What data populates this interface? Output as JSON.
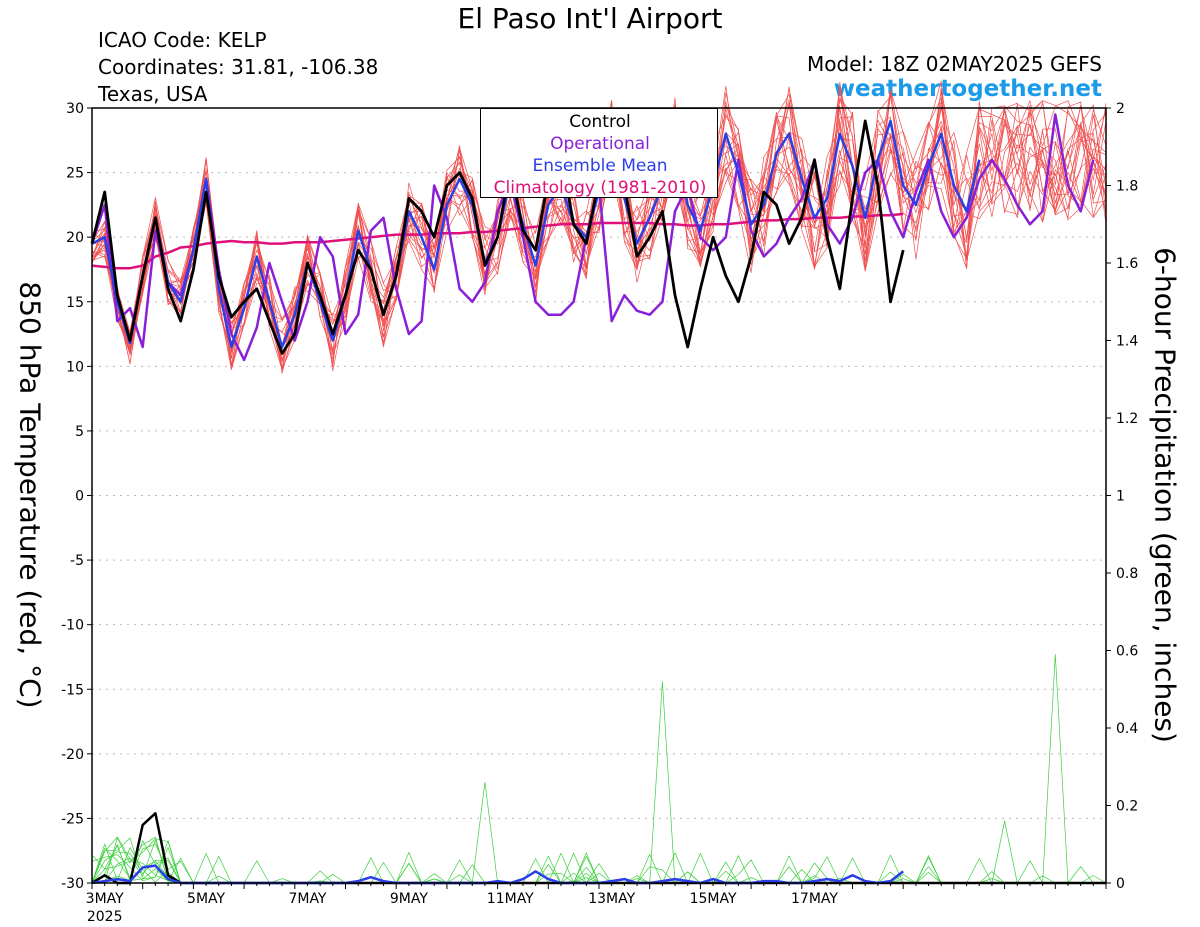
{
  "header": {
    "title": "El Paso Int'l Airport",
    "icao": "ICAO Code: KELP",
    "coordinates": "Coordinates: 31.81, -106.38",
    "region": "Texas, USA",
    "model": "Model: 18Z 02MAY2025 GEFS",
    "site": "weathertogether.net"
  },
  "colors": {
    "members": "#f05050",
    "control": "#000000",
    "operational": "#8a1fd8",
    "ensemble_mean": "#2a3fe6",
    "climatology": "#e0107a",
    "precip_members": "#3ccf3c",
    "site": "#1a9ae8"
  },
  "chart_data": {
    "type": "line",
    "title": "El Paso Int'l Airport",
    "xlabel": "",
    "ylabel": "850 hPa Temperature (red, °C)",
    "y2label": "6-hour Precipitation (green, inches)",
    "ylim": [
      -30,
      30
    ],
    "y2lim": [
      0,
      2
    ],
    "yticks": [
      30,
      25,
      20,
      15,
      10,
      5,
      0,
      -5,
      -10,
      -15,
      -20,
      -25,
      -30
    ],
    "y2ticks": [
      "2",
      "1.8",
      "1.6",
      "1.4",
      "1.2",
      "1",
      "0.8",
      "0.6",
      "0.4",
      "0.2",
      "0"
    ],
    "x_step_hours": 6,
    "x_start": "00Z 03MAY2025",
    "xtick_labels": [
      "3MAY",
      "5MAY",
      "7MAY",
      "9MAY",
      "11MAY",
      "13MAY",
      "15MAY",
      "17MAY"
    ],
    "xtick_day_index": [
      0,
      2,
      4,
      6,
      8,
      10,
      12,
      14
    ],
    "year_label": "2025",
    "grid": true,
    "legend_position": "top-center",
    "legend": [
      "Control",
      "Operational",
      "Ensemble Mean",
      "Climatology (1981-2010)"
    ],
    "series": [
      {
        "name": "Control",
        "axis": "left",
        "values": [
          19.5,
          23.5,
          15.5,
          12.0,
          17.0,
          21.5,
          16.0,
          13.5,
          17.5,
          23.5,
          17.0,
          13.8,
          15.0,
          16.0,
          13.5,
          11.0,
          12.5,
          18.0,
          15.5,
          12.5,
          15.5,
          19.0,
          17.5,
          14.0,
          17.0,
          23.0,
          22.0,
          20.0,
          24.0,
          25.0,
          23.0,
          17.8,
          20.0,
          25.5,
          20.5,
          19.0,
          24.5,
          26.5,
          21.0,
          19.5,
          24.5,
          27.0,
          24.0,
          18.5,
          20.0,
          22.0,
          15.5,
          11.5,
          16.0,
          20.0,
          17.0,
          15.0,
          18.5,
          23.5,
          22.5,
          19.5,
          21.5,
          26.0,
          20.0,
          16.0,
          23.0,
          29.0,
          24.0,
          15.0,
          19.0
        ]
      },
      {
        "name": "Operational",
        "axis": "left",
        "values": [
          19.5,
          22.5,
          13.5,
          14.5,
          11.5,
          20.5,
          16.5,
          15.5,
          19.0,
          24.5,
          17.5,
          12.5,
          10.5,
          13.0,
          18.0,
          15.0,
          12.0,
          15.0,
          20.0,
          18.5,
          12.5,
          14.0,
          20.5,
          21.5,
          16.0,
          12.5,
          13.5,
          24.0,
          21.5,
          16.0,
          15.0,
          16.5,
          22.0,
          24.5,
          20.0,
          15.0,
          14.0,
          14.0,
          15.0,
          20.0,
          24.0,
          13.5,
          15.5,
          14.3,
          14.0,
          15.0,
          22.0,
          24.0,
          20.0,
          19.0,
          20.0,
          26.0,
          20.5,
          18.5,
          19.5,
          21.5,
          23.0,
          26.0,
          21.0,
          19.5,
          21.5,
          25.0,
          26.0,
          22.0,
          20.0,
          23.5,
          26.0,
          22.0,
          20.0,
          21.5,
          24.5,
          26.0,
          24.5,
          22.5,
          21.0,
          22.0,
          29.5,
          24.0,
          22.0,
          26.0
        ]
      },
      {
        "name": "Ensemble Mean",
        "axis": "left",
        "values": [
          19.5,
          20.0,
          15.0,
          11.8,
          17.0,
          21.5,
          16.5,
          15.0,
          19.0,
          24.5,
          16.0,
          11.5,
          14.5,
          18.5,
          15.0,
          11.5,
          14.0,
          18.0,
          15.0,
          12.0,
          15.5,
          20.5,
          17.5,
          14.0,
          17.0,
          22.0,
          20.0,
          17.5,
          22.5,
          24.5,
          22.5,
          18.0,
          20.0,
          24.5,
          21.0,
          17.8,
          22.5,
          24.0,
          21.0,
          20.0,
          23.5,
          27.5,
          23.0,
          19.5,
          21.5,
          24.0,
          28.0,
          22.5,
          20.5,
          24.0,
          28.0,
          25.0,
          21.0,
          22.5,
          26.5,
          28.0,
          24.5,
          21.5,
          23.0,
          28.0,
          25.5,
          21.5,
          26.0,
          29.0,
          24.0,
          22.5,
          25.5,
          28.0,
          24.0,
          22.0,
          26.0
        ]
      }
    ],
    "climatology": {
      "name": "Climatology (1981-2010)",
      "axis": "left",
      "values": [
        17.8,
        17.7,
        17.6,
        17.6,
        17.8,
        18.5,
        18.8,
        19.2,
        19.3,
        19.5,
        19.6,
        19.7,
        19.6,
        19.6,
        19.5,
        19.5,
        19.6,
        19.6,
        19.6,
        19.7,
        19.8,
        19.9,
        20.0,
        20.1,
        20.2,
        20.2,
        20.2,
        20.3,
        20.3,
        20.3,
        20.4,
        20.4,
        20.5,
        20.6,
        20.7,
        20.8,
        20.9,
        21.0,
        21.0,
        21.0,
        21.1,
        21.1,
        21.1,
        21.1,
        21.1,
        21.0,
        21.0,
        20.9,
        20.9,
        21.0,
        21.0,
        21.1,
        21.2,
        21.3,
        21.3,
        21.4,
        21.4,
        21.5,
        21.5,
        21.5,
        21.6,
        21.6,
        21.7,
        21.7,
        21.8
      ]
    },
    "precip_series": [
      {
        "name": "Control",
        "axis": "right",
        "values": [
          0,
          0.02,
          0,
          0,
          0.15,
          0.18,
          0.02,
          0,
          0,
          0,
          0,
          0,
          0,
          0,
          0,
          0,
          0,
          0,
          0,
          0,
          0,
          0,
          0,
          0,
          0,
          0,
          0,
          0,
          0,
          0,
          0,
          0,
          0,
          0,
          0,
          0,
          0,
          0,
          0,
          0,
          0,
          0,
          0,
          0,
          0,
          0,
          0,
          0,
          0,
          0,
          0,
          0,
          0,
          0,
          0,
          0,
          0,
          0,
          0,
          0,
          0,
          0,
          0,
          0,
          0,
          0,
          0,
          0,
          0,
          0,
          0,
          0,
          0,
          0,
          0,
          0,
          0,
          0,
          0,
          0,
          0
        ]
      },
      {
        "name": "Ensemble Mean",
        "axis": "right",
        "values": [
          0,
          0.005,
          0.01,
          0.005,
          0.04,
          0.045,
          0.01,
          0,
          0,
          0,
          0,
          0,
          0,
          0,
          0,
          0,
          0,
          0,
          0,
          0,
          0,
          0.005,
          0.015,
          0.005,
          0,
          0,
          0,
          0,
          0,
          0,
          0,
          0,
          0.005,
          0,
          0.01,
          0.03,
          0.01,
          0,
          0,
          0,
          0,
          0.005,
          0.01,
          0,
          0,
          0.005,
          0.01,
          0.005,
          0,
          0.01,
          0,
          0,
          0,
          0.005,
          0.005,
          0,
          0,
          0.005,
          0.01,
          0.005,
          0.02,
          0.005,
          0,
          0.005,
          0.03
        ]
      }
    ]
  }
}
